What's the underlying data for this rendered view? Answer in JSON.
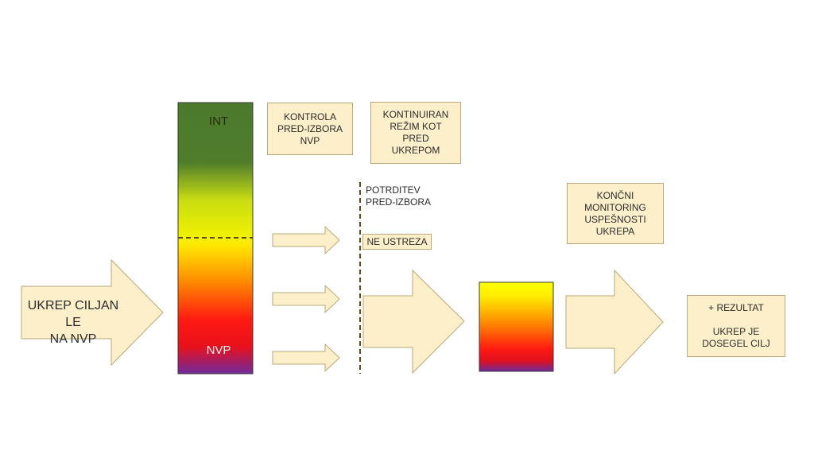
{
  "main_arrow": {
    "label": "UKREP CILJAN LE\nNA NVP"
  },
  "scale_bar": {
    "top_label": "INT",
    "bottom_label": "NVP"
  },
  "boxes": {
    "kontrola": "KONTROLA\nPRED-IZBORA\nNVP",
    "kontinuiran": "KONTINUIRAN\nREŽIM KOT\nPRED\nUKREPOM",
    "koncni": "KONČNI\nMONITORING\nUSPEŠNOSTI\nUKREPA",
    "rezultat": "+ REZULTAT\n\nUKREP JE\nDOSEGEL CILJ"
  },
  "potrditev": "POTRDITEV\nPRED-IZBORA",
  "ne_ustreza": "NE USTREZA",
  "colors": {
    "box_fill": "#fcefc9",
    "box_border": "#b9a87a",
    "green": "#4a7a2c",
    "yellow": "#ffff00",
    "orange": "#ff9900",
    "red": "#ff1a1a",
    "purple": "#7030a0"
  }
}
